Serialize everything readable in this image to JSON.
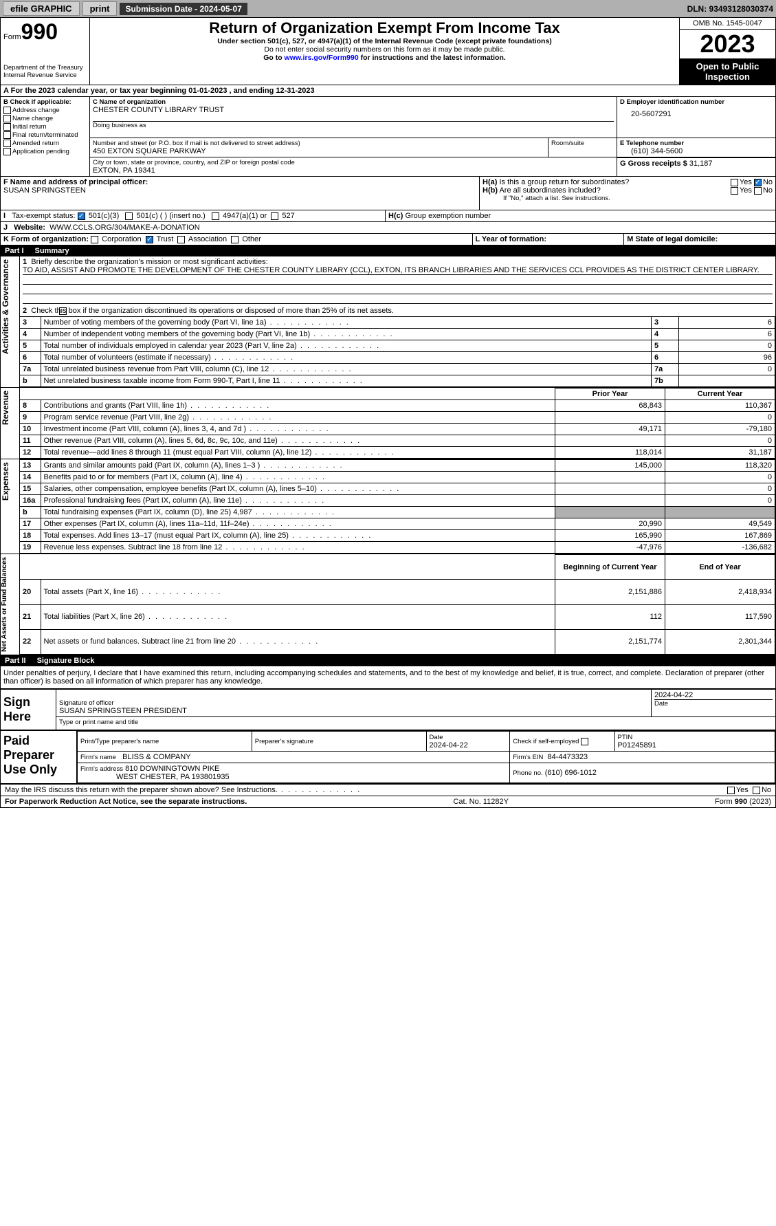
{
  "topbar": {
    "efile": "efile GRAPHIC",
    "print": "print",
    "sub_label": "Submission Date - 2024-05-07",
    "dln": "DLN: 93493128030374"
  },
  "header": {
    "form_word": "Form",
    "form_num": "990",
    "dept": "Department of the Treasury",
    "irs": "Internal Revenue Service",
    "title": "Return of Organization Exempt From Income Tax",
    "sub1": "Under section 501(c), 527, or 4947(a)(1) of the Internal Revenue Code (except private foundations)",
    "sub2": "Do not enter social security numbers on this form as it may be made public.",
    "sub3_pre": "Go to ",
    "sub3_link": "www.irs.gov/Form990",
    "sub3_post": " for instructions and the latest information.",
    "omb": "OMB No. 1545-0047",
    "year": "2023",
    "open": "Open to Public Inspection"
  },
  "lineA": "For the 2023 calendar year, or tax year beginning 01-01-2023     , and ending 12-31-2023",
  "boxB": {
    "hdr": "B Check if applicable:",
    "items": [
      "Address change",
      "Name change",
      "Initial return",
      "Final return/terminated",
      "Amended return",
      "Application pending"
    ]
  },
  "boxC": {
    "name_lbl": "C Name of organization",
    "name": "CHESTER COUNTY LIBRARY TRUST",
    "dba_lbl": "Doing business as",
    "addr_lbl": "Number and street (or P.O. box if mail is not delivered to street address)",
    "addr": "450 EXTON SQUARE PARKWAY",
    "suite_lbl": "Room/suite",
    "city_lbl": "City or town, state or province, country, and ZIP or foreign postal code",
    "city": "EXTON, PA   19341"
  },
  "boxD": {
    "lbl": "D Employer identification number",
    "val": "20-5607291"
  },
  "boxE": {
    "lbl": "E Telephone number",
    "val": "(610) 344-5600"
  },
  "boxG": {
    "lbl": "G Gross receipts $",
    "val": "31,187"
  },
  "boxF": {
    "lbl": "F   Name and address of principal officer:",
    "val": "SUSAN SPRINGSTEEN"
  },
  "boxH": {
    "a": "Is this a group return for subordinates?",
    "b": "Are all subordinates included?",
    "b_note": "If \"No,\" attach a list. See instructions.",
    "c": "Group exemption number",
    "yes": "Yes",
    "no": "No"
  },
  "lineI": {
    "lbl": "Tax-exempt status:",
    "o1": "501(c)(3)",
    "o2": "501(c) (  ) (insert no.)",
    "o3": "4947(a)(1) or",
    "o4": "527"
  },
  "lineJ": {
    "lbl": "Website:",
    "val": "WWW.CCLS.ORG/304/MAKE-A-DONATION"
  },
  "lineK": {
    "lbl": "K Form of organization:",
    "o1": "Corporation",
    "o2": "Trust",
    "o3": "Association",
    "o4": "Other"
  },
  "lineL": {
    "lbl": "L Year of formation:"
  },
  "lineM": {
    "lbl": "M State of legal domicile:"
  },
  "part1": {
    "hdr": "Part I",
    "title": "Summary"
  },
  "sum": {
    "l1": "Briefly describe the organization's mission or most significant activities:",
    "l1v": "TO AID, ASSIST AND PROMOTE THE DEVELOPMENT OF THE CHESTER COUNTY LIBRARY (CCL), EXTON, ITS BRANCH LIBRARIES AND THE SERVICES CCL PROVIDES AS THE DISTRICT CENTER LIBRARY.",
    "l2": "Check this box       if the organization discontinued its operations or disposed of more than 25% of its net assets.",
    "rows": [
      {
        "n": "3",
        "t": "Number of voting members of the governing body (Part VI, line 1a)",
        "box": "3",
        "v": "6"
      },
      {
        "n": "4",
        "t": "Number of independent voting members of the governing body (Part VI, line 1b)",
        "box": "4",
        "v": "6"
      },
      {
        "n": "5",
        "t": "Total number of individuals employed in calendar year 2023 (Part V, line 2a)",
        "box": "5",
        "v": "0"
      },
      {
        "n": "6",
        "t": "Total number of volunteers (estimate if necessary)",
        "box": "6",
        "v": "96"
      },
      {
        "n": "7a",
        "t": "Total unrelated business revenue from Part VIII, column (C), line 12",
        "box": "7a",
        "v": "0"
      },
      {
        "n": "b",
        "t": "Net unrelated business taxable income from Form 990-T, Part I, line 11",
        "box": "7b",
        "v": ""
      }
    ],
    "prior": "Prior Year",
    "current": "Current Year",
    "rev": [
      {
        "n": "8",
        "t": "Contributions and grants (Part VIII, line 1h)",
        "p": "68,843",
        "c": "110,367"
      },
      {
        "n": "9",
        "t": "Program service revenue (Part VIII, line 2g)",
        "p": "",
        "c": "0"
      },
      {
        "n": "10",
        "t": "Investment income (Part VIII, column (A), lines 3, 4, and 7d )",
        "p": "49,171",
        "c": "-79,180"
      },
      {
        "n": "11",
        "t": "Other revenue (Part VIII, column (A), lines 5, 6d, 8c, 9c, 10c, and 11e)",
        "p": "",
        "c": "0"
      },
      {
        "n": "12",
        "t": "Total revenue—add lines 8 through 11 (must equal Part VIII, column (A), line 12)",
        "p": "118,014",
        "c": "31,187"
      }
    ],
    "exp": [
      {
        "n": "13",
        "t": "Grants and similar amounts paid (Part IX, column (A), lines 1–3 )",
        "p": "145,000",
        "c": "118,320"
      },
      {
        "n": "14",
        "t": "Benefits paid to or for members (Part IX, column (A), line 4)",
        "p": "",
        "c": "0"
      },
      {
        "n": "15",
        "t": "Salaries, other compensation, employee benefits (Part IX, column (A), lines 5–10)",
        "p": "",
        "c": "0"
      },
      {
        "n": "16a",
        "t": "Professional fundraising fees (Part IX, column (A), line 11e)",
        "p": "",
        "c": "0"
      },
      {
        "n": "b",
        "t": "Total fundraising expenses (Part IX, column (D), line 25) 4,987",
        "p": "GRAY",
        "c": "GRAY"
      },
      {
        "n": "17",
        "t": "Other expenses (Part IX, column (A), lines 11a–11d, 11f–24e)",
        "p": "20,990",
        "c": "49,549"
      },
      {
        "n": "18",
        "t": "Total expenses. Add lines 13–17 (must equal Part IX, column (A), line 25)",
        "p": "165,990",
        "c": "167,869"
      },
      {
        "n": "19",
        "t": "Revenue less expenses. Subtract line 18 from line 12",
        "p": "-47,976",
        "c": "-136,682"
      }
    ],
    "beg": "Beginning of Current Year",
    "end": "End of Year",
    "net": [
      {
        "n": "20",
        "t": "Total assets (Part X, line 16)",
        "p": "2,151,886",
        "c": "2,418,934"
      },
      {
        "n": "21",
        "t": "Total liabilities (Part X, line 26)",
        "p": "112",
        "c": "117,590"
      },
      {
        "n": "22",
        "t": "Net assets or fund balances. Subtract line 21 from line 20",
        "p": "2,151,774",
        "c": "2,301,344"
      }
    ],
    "side1": "Activities & Governance",
    "side2": "Revenue",
    "side3": "Expenses",
    "side4": "Net Assets or Fund Balances"
  },
  "part2": {
    "hdr": "Part II",
    "title": "Signature Block"
  },
  "penalty": "Under penalties of perjury, I declare that I have examined this return, including accompanying schedules and statements, and to the best of my knowledge and belief, it is true, correct, and complete. Declaration of preparer (other than officer) is based on all information of which preparer has any knowledge.",
  "sign": {
    "here": "Sign Here",
    "sig_lbl": "Signature of officer",
    "name": "SUSAN SPRINGSTEEN  PRESIDENT",
    "name_lbl": "Type or print name and title",
    "date_lbl": "Date",
    "date": "2024-04-22"
  },
  "paid": {
    "title": "Paid Preparer Use Only",
    "prep_lbl": "Print/Type preparer's name",
    "sig_lbl": "Preparer's signature",
    "date_lbl": "Date",
    "date": "2024-04-22",
    "check_lbl": "Check        if self-employed",
    "ptin_lbl": "PTIN",
    "ptin": "P01245891",
    "firm_lbl": "Firm's name",
    "firm": "BLISS & COMPANY",
    "ein_lbl": "Firm's EIN",
    "ein": "84-4473323",
    "addr_lbl": "Firm's address",
    "addr1": "810 DOWNINGTOWN PIKE",
    "addr2": "WEST CHESTER, PA   193801935",
    "phone_lbl": "Phone no.",
    "phone": "(610) 696-1012"
  },
  "discuss": "May the IRS discuss this return with the preparer shown above? See Instructions.",
  "footer": {
    "l": "For Paperwork Reduction Act Notice, see the separate instructions.",
    "c": "Cat. No. 11282Y",
    "r": "Form 990 (2023)"
  }
}
